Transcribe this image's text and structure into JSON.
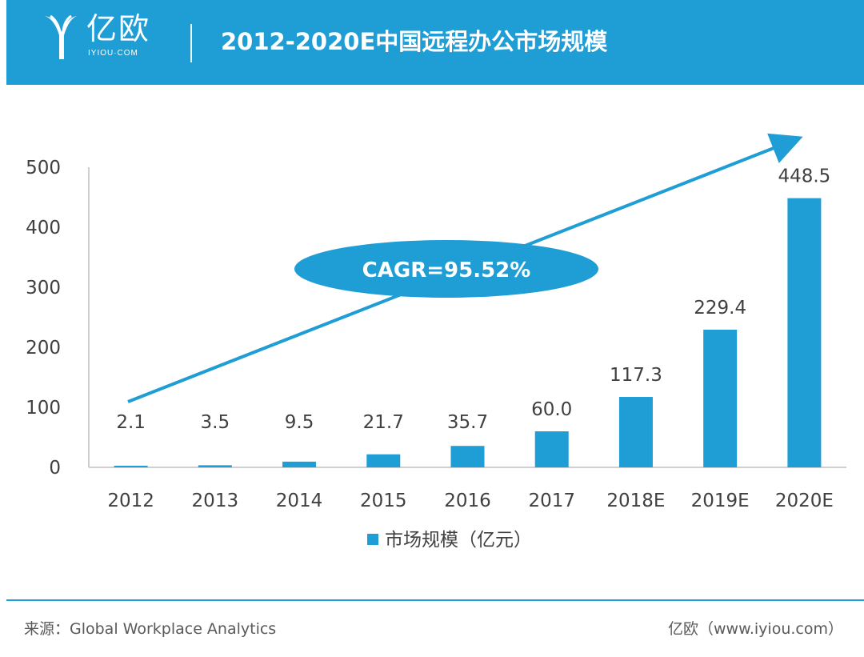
{
  "header": {
    "logo_text": "亿欧",
    "logo_sub": "IYIOU·COM",
    "title": "2012-2020E中国远程办公市场规模"
  },
  "footer": {
    "source": "来源：Global Workplace Analytics",
    "credit": "亿欧（www.iyiou.com）"
  },
  "colors": {
    "accent": "#1f9ed6",
    "bar": "#1f9ed6",
    "text": "#404040",
    "axis": "#bfbfbf"
  },
  "chart_data": {
    "type": "bar",
    "title": "2012-2020E中国远程办公市场规模",
    "categories": [
      "2012",
      "2013",
      "2014",
      "2015",
      "2016",
      "2017",
      "2018E",
      "2019E",
      "2020E"
    ],
    "series": [
      {
        "name": "市场规模（亿元）",
        "values": [
          2.1,
          3.5,
          9.5,
          21.7,
          35.7,
          60.0,
          117.3,
          229.4,
          448.5
        ],
        "labels": [
          "2.1",
          "3.5",
          "9.5",
          "21.7",
          "35.7",
          "60.0",
          "117.3",
          "229.4",
          "448.5"
        ]
      }
    ],
    "ylim": [
      0,
      500
    ],
    "yticks": [
      0,
      100,
      200,
      300,
      400,
      500
    ],
    "grid": false,
    "legend": "bottom-center",
    "annotation": "CAGR=95.52%",
    "xlabel": "",
    "ylabel": ""
  }
}
